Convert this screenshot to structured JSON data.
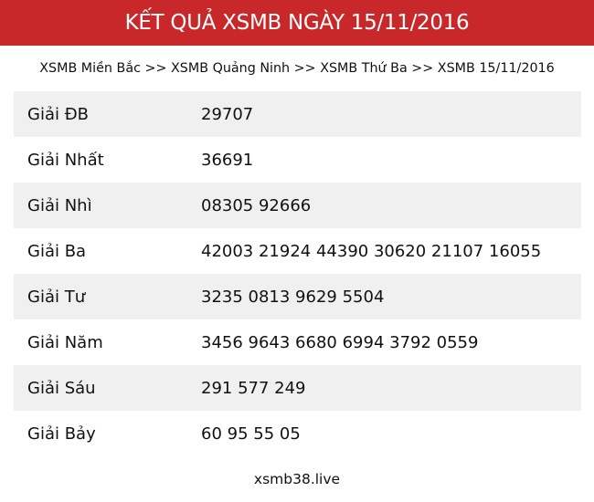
{
  "header": {
    "title": "KẾT QUẢ XSMB NGÀY 15/11/2016",
    "bg_color": "#c8282a"
  },
  "breadcrumb": [
    "XSMB Miền Bắc",
    "XSMB Quảng Ninh",
    "XSMB Thứ Ba",
    "XSMB 15/11/2016"
  ],
  "breadcrumb_separator": " >> ",
  "results": [
    {
      "label": "Giải ĐB",
      "value": "29707"
    },
    {
      "label": "Giải Nhất",
      "value": "36691"
    },
    {
      "label": "Giải Nhì",
      "value": "08305 92666"
    },
    {
      "label": "Giải Ba",
      "value": "42003 21924 44390 30620 21107 16055"
    },
    {
      "label": "Giải Tư",
      "value": "3235 0813 9629 5504"
    },
    {
      "label": "Giải Năm",
      "value": "3456 9643 6680 6994 3792 0559"
    },
    {
      "label": "Giải Sáu",
      "value": "291 577 249"
    },
    {
      "label": "Giải Bảy",
      "value": "60 95 55 05"
    }
  ],
  "footer": {
    "site": "xsmb38.live"
  }
}
